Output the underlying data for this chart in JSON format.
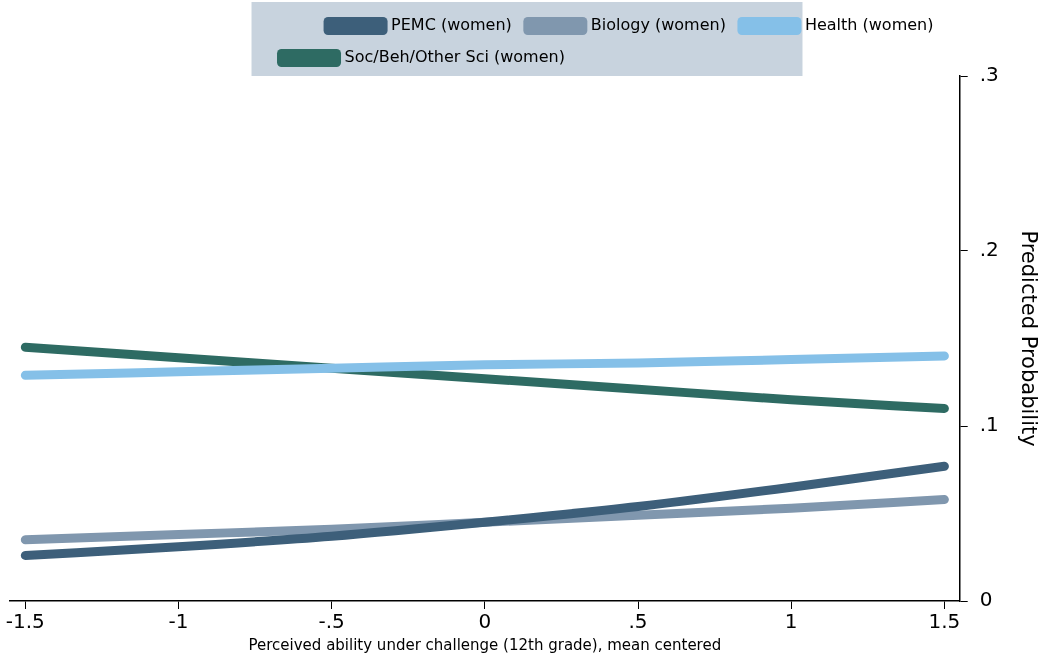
{
  "chart_data": {
    "type": "line",
    "xlabel": "Perceived ability under challenge (12th grade), mean centered",
    "ylabel": "Predicted Probability",
    "x": [
      -1.5,
      -1,
      -0.5,
      0,
      0.5,
      1,
      1.5
    ],
    "series": [
      {
        "name": "PEMC (women)",
        "color": "#3d5f7a",
        "values": [
          0.026,
          0.031,
          0.037,
          0.045,
          0.054,
          0.065,
          0.077
        ]
      },
      {
        "name": "Biology (women)",
        "color": "#8097ae",
        "values": [
          0.035,
          0.038,
          0.041,
          0.045,
          0.049,
          0.053,
          0.058
        ]
      },
      {
        "name": "Health (women)",
        "color": "#85c0e8",
        "values": [
          0.129,
          0.131,
          0.133,
          0.135,
          0.136,
          0.138,
          0.14
        ]
      },
      {
        "name": "Soc/Beh/Other Sci (women)",
        "color": "#2e6b63",
        "values": [
          0.145,
          0.139,
          0.133,
          0.127,
          0.121,
          0.115,
          0.11
        ]
      }
    ],
    "xlim": [
      -1.55,
      1.55
    ],
    "xticks": [
      -1.5,
      -1,
      {
        "value": -0.5,
        "label": "-.5"
      },
      0,
      {
        "value": 0.5,
        "label": ".5"
      },
      1,
      1.5
    ],
    "ylim": [
      0,
      0.3
    ],
    "yticks": [
      0,
      {
        "value": 0.1,
        "label": ".1"
      },
      {
        "value": 0.2,
        "label": ".2"
      },
      {
        "value": 0.3,
        "label": ".3"
      }
    ],
    "grid": false,
    "legend": "top",
    "marker": "none",
    "line_style": "solid"
  }
}
